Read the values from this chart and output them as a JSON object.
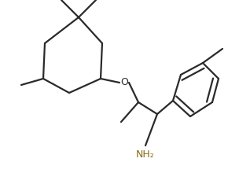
{
  "bg_color": "#ffffff",
  "line_color": "#2a2a2a",
  "nh2_color": "#8B6914",
  "line_width": 1.6,
  "figsize": [
    3.18,
    2.25
  ],
  "dpi": 100
}
